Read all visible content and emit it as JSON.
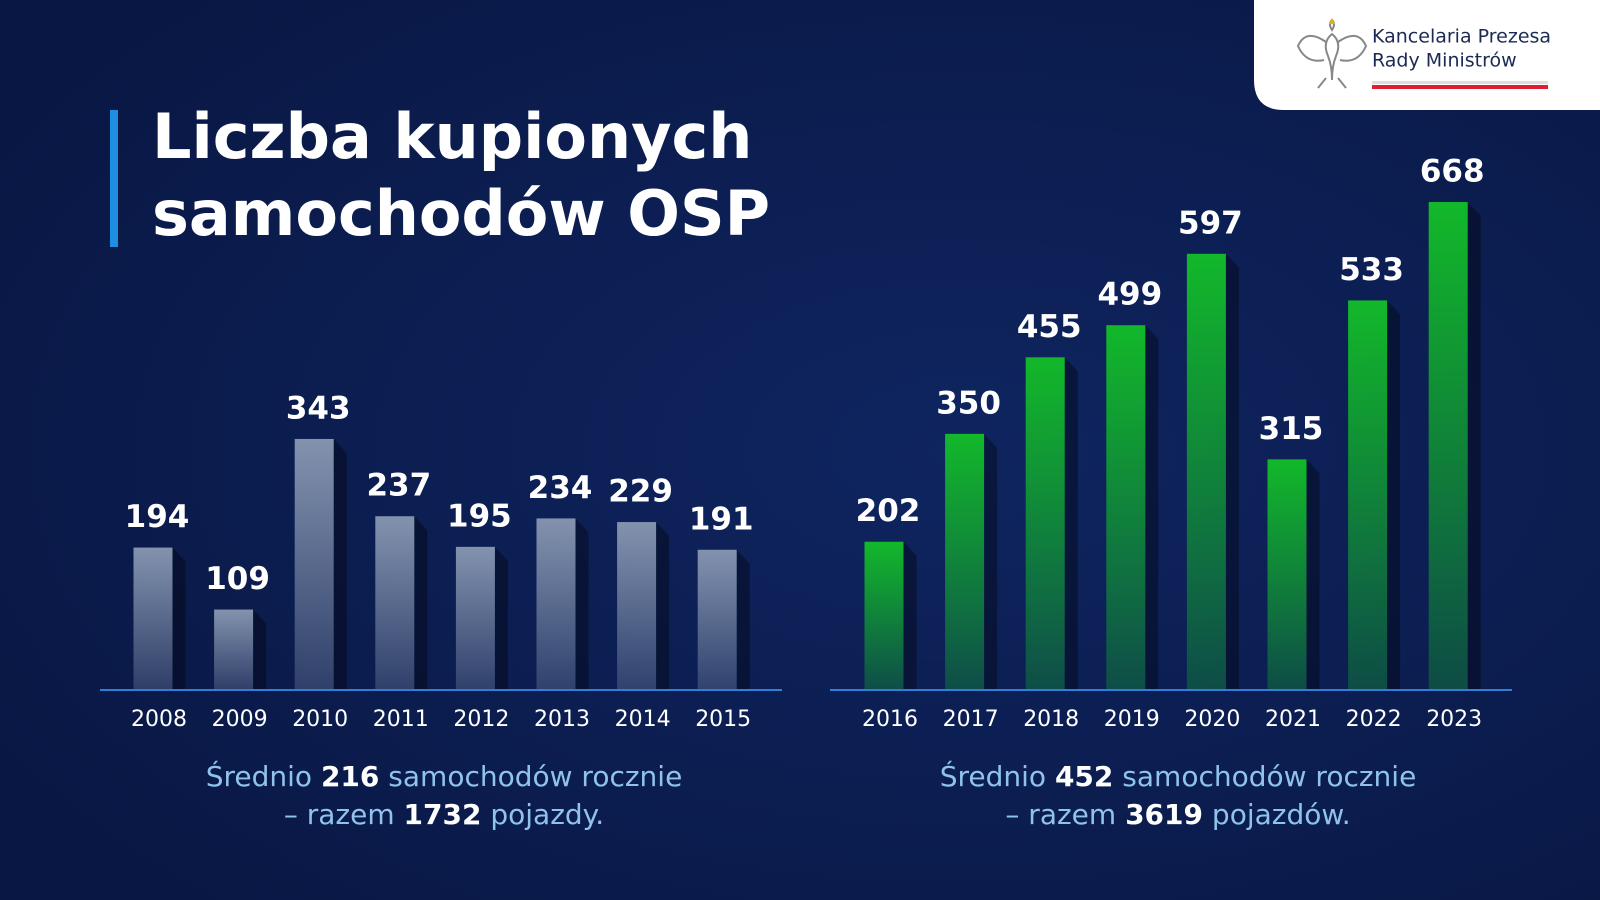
{
  "header": {
    "title": [
      "Liczba kupionych",
      "samochodów OSP"
    ],
    "logo": [
      "Kancelaria Prezesa",
      "Rady Ministrów"
    ]
  },
  "chart_data": [
    {
      "type": "bar",
      "categories": [
        "2008",
        "2009",
        "2010",
        "2011",
        "2012",
        "2013",
        "2014",
        "2015"
      ],
      "values": [
        194,
        109,
        343,
        237,
        195,
        234,
        229,
        191
      ],
      "color": "#8393ae",
      "summary": [
        [
          "Średnio ",
          "216",
          " samochodów rocznie"
        ],
        [
          "– razem ",
          "1732",
          " pojazdy."
        ]
      ]
    },
    {
      "type": "bar",
      "categories": [
        "2016",
        "2017",
        "2018",
        "2019",
        "2020",
        "2021",
        "2022",
        "2023"
      ],
      "values": [
        202,
        350,
        455,
        499,
        597,
        315,
        533,
        668
      ],
      "color": "#12b82a",
      "summary": [
        [
          "Średnio ",
          "452",
          " samochodów rocznie"
        ],
        [
          "– razem ",
          "3619",
          " pojazdów."
        ]
      ]
    }
  ]
}
